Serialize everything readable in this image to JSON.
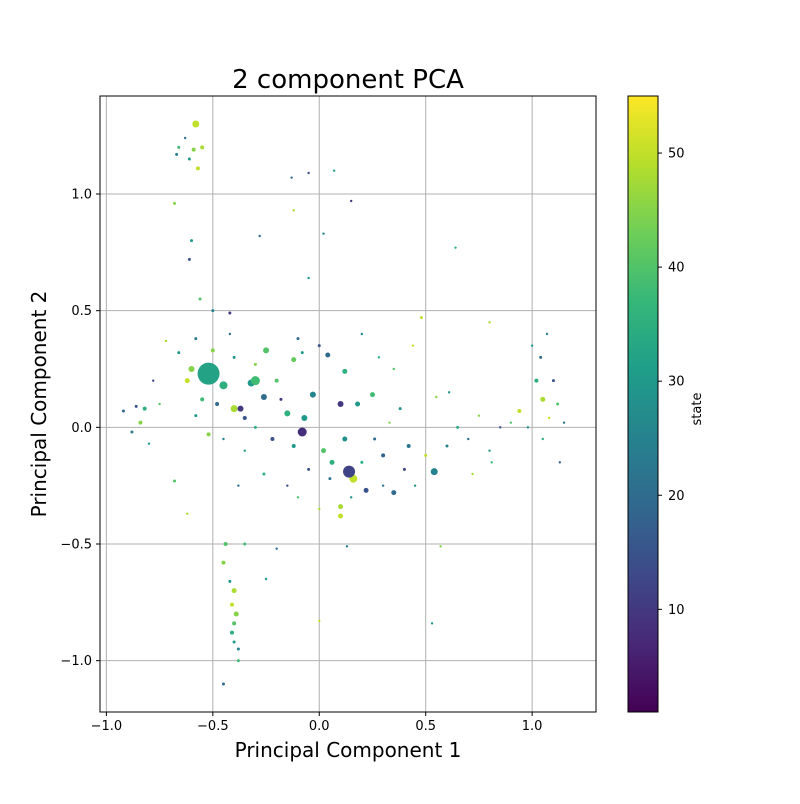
{
  "chart_data": {
    "type": "scatter",
    "title": "2 component PCA",
    "xlabel": "Principal Component 1",
    "ylabel": "Principal Component 2",
    "xlim": [
      -1.03,
      1.3
    ],
    "ylim": [
      -1.22,
      1.42
    ],
    "xticks": [
      -1.0,
      -0.5,
      0.0,
      0.5,
      1.0
    ],
    "xtick_labels": [
      "−1.0",
      "−0.5",
      "0.0",
      "0.5",
      "1.0"
    ],
    "yticks": [
      -1.0,
      -0.5,
      0.0,
      0.5,
      1.0
    ],
    "ytick_labels": [
      "−1.0",
      "−0.5",
      "0.0",
      "0.5",
      "1.0"
    ],
    "grid": true,
    "colormap": "viridis",
    "colorbar": {
      "label": "state",
      "range": [
        1,
        55
      ],
      "ticks": [
        10,
        20,
        30,
        40,
        50
      ],
      "tick_labels": [
        "10",
        "20",
        "30",
        "40",
        "50"
      ]
    },
    "colors": {
      "viridis": [
        "#440154",
        "#482878",
        "#3e4989",
        "#31688e",
        "#26828e",
        "#1f9e89",
        "#35b779",
        "#6ece58",
        "#b5de2b",
        "#fde725"
      ]
    },
    "points": [
      {
        "x": -0.52,
        "y": 0.23,
        "state": 32,
        "size": 11
      },
      {
        "x": -0.58,
        "y": 1.3,
        "state": 50,
        "size": 3.5
      },
      {
        "x": -0.59,
        "y": 1.19,
        "state": 45,
        "size": 2
      },
      {
        "x": -0.55,
        "y": 1.2,
        "state": 48,
        "size": 2
      },
      {
        "x": -0.61,
        "y": 1.15,
        "state": 30,
        "size": 1.5
      },
      {
        "x": -0.66,
        "y": 1.2,
        "state": 38,
        "size": 1.5
      },
      {
        "x": -0.67,
        "y": 1.17,
        "state": 25,
        "size": 1.5
      },
      {
        "x": -0.57,
        "y": 1.11,
        "state": 50,
        "size": 2
      },
      {
        "x": -0.63,
        "y": 1.24,
        "state": 20,
        "size": 1.2
      },
      {
        "x": -0.68,
        "y": 0.96,
        "state": 45,
        "size": 1.5
      },
      {
        "x": -0.6,
        "y": 0.8,
        "state": 30,
        "size": 1.5
      },
      {
        "x": -0.61,
        "y": 0.72,
        "state": 15,
        "size": 1.5
      },
      {
        "x": -0.56,
        "y": 0.55,
        "state": 40,
        "size": 1.5
      },
      {
        "x": -0.5,
        "y": 0.5,
        "state": 25,
        "size": 1.5
      },
      {
        "x": -0.42,
        "y": 0.49,
        "state": 10,
        "size": 1.5
      },
      {
        "x": -0.13,
        "y": 1.07,
        "state": 20,
        "size": 1.2
      },
      {
        "x": -0.05,
        "y": 1.09,
        "state": 15,
        "size": 1.2
      },
      {
        "x": 0.07,
        "y": 1.1,
        "state": 30,
        "size": 1.2
      },
      {
        "x": -0.12,
        "y": 0.93,
        "state": 48,
        "size": 1.2
      },
      {
        "x": 0.15,
        "y": 0.97,
        "state": 10,
        "size": 1.2
      },
      {
        "x": -0.28,
        "y": 0.82,
        "state": 20,
        "size": 1.2
      },
      {
        "x": 0.02,
        "y": 0.83,
        "state": 25,
        "size": 1.2
      },
      {
        "x": -0.05,
        "y": 0.64,
        "state": 30,
        "size": 1.2
      },
      {
        "x": 0.48,
        "y": 0.47,
        "state": 50,
        "size": 1.5
      },
      {
        "x": 0.64,
        "y": 0.77,
        "state": 35,
        "size": 1.2
      },
      {
        "x": 0.8,
        "y": 0.45,
        "state": 48,
        "size": 1.2
      },
      {
        "x": -0.6,
        "y": 0.25,
        "state": 45,
        "size": 3
      },
      {
        "x": -0.62,
        "y": 0.2,
        "state": 50,
        "size": 2.5
      },
      {
        "x": -0.45,
        "y": 0.18,
        "state": 35,
        "size": 4
      },
      {
        "x": -0.3,
        "y": 0.2,
        "state": 38,
        "size": 4.5
      },
      {
        "x": -0.32,
        "y": 0.19,
        "state": 30,
        "size": 3.5
      },
      {
        "x": -0.4,
        "y": 0.08,
        "state": 48,
        "size": 3.5
      },
      {
        "x": -0.37,
        "y": 0.08,
        "state": 10,
        "size": 3
      },
      {
        "x": -0.26,
        "y": 0.13,
        "state": 20,
        "size": 3
      },
      {
        "x": -0.08,
        "y": -0.02,
        "state": 8,
        "size": 4.5
      },
      {
        "x": -0.07,
        "y": 0.04,
        "state": 30,
        "size": 3
      },
      {
        "x": -0.15,
        "y": 0.06,
        "state": 35,
        "size": 3
      },
      {
        "x": -0.03,
        "y": 0.14,
        "state": 25,
        "size": 3
      },
      {
        "x": 0.04,
        "y": 0.31,
        "state": 20,
        "size": 2.5
      },
      {
        "x": 0.14,
        "y": -0.19,
        "state": 12,
        "size": 6
      },
      {
        "x": 0.16,
        "y": -0.22,
        "state": 50,
        "size": 4
      },
      {
        "x": 0.1,
        "y": -0.34,
        "state": 48,
        "size": 2.5
      },
      {
        "x": 0.1,
        "y": -0.38,
        "state": 50,
        "size": 2.5
      },
      {
        "x": 0.1,
        "y": 0.1,
        "state": 10,
        "size": 3
      },
      {
        "x": 0.12,
        "y": 0.24,
        "state": 35,
        "size": 2.5
      },
      {
        "x": 0.18,
        "y": 0.1,
        "state": 30,
        "size": 2.5
      },
      {
        "x": 0.25,
        "y": 0.14,
        "state": 38,
        "size": 2.5
      },
      {
        "x": 0.54,
        "y": -0.19,
        "state": 25,
        "size": 3.5
      },
      {
        "x": 0.35,
        "y": -0.28,
        "state": 20,
        "size": 2.5
      },
      {
        "x": 0.22,
        "y": -0.27,
        "state": 15,
        "size": 2.5
      },
      {
        "x": 0.02,
        "y": -0.1,
        "state": 40,
        "size": 2.5
      },
      {
        "x": 0.06,
        "y": -0.15,
        "state": 35,
        "size": 2.5
      },
      {
        "x": -0.25,
        "y": 0.33,
        "state": 40,
        "size": 3
      },
      {
        "x": -0.12,
        "y": 0.29,
        "state": 42,
        "size": 2.5
      },
      {
        "x": 0.12,
        "y": -0.05,
        "state": 28,
        "size": 2.5
      },
      {
        "x": 0.3,
        "y": -0.12,
        "state": 18,
        "size": 2
      },
      {
        "x": 0.42,
        "y": -0.08,
        "state": 22,
        "size": 2
      },
      {
        "x": -0.22,
        "y": -0.05,
        "state": 15,
        "size": 2
      },
      {
        "x": -0.52,
        "y": -0.03,
        "state": 45,
        "size": 2
      },
      {
        "x": -0.45,
        "y": -0.58,
        "state": 45,
        "size": 2
      },
      {
        "x": -0.44,
        "y": -0.5,
        "state": 40,
        "size": 2
      },
      {
        "x": -0.35,
        "y": -0.5,
        "state": 38,
        "size": 1.5
      },
      {
        "x": -0.42,
        "y": -0.66,
        "state": 30,
        "size": 1.5
      },
      {
        "x": -0.4,
        "y": -0.7,
        "state": 48,
        "size": 2.5
      },
      {
        "x": -0.41,
        "y": -0.76,
        "state": 50,
        "size": 2
      },
      {
        "x": -0.39,
        "y": -0.8,
        "state": 45,
        "size": 2.5
      },
      {
        "x": -0.4,
        "y": -0.84,
        "state": 40,
        "size": 2
      },
      {
        "x": -0.41,
        "y": -0.88,
        "state": 35,
        "size": 2
      },
      {
        "x": -0.4,
        "y": -0.92,
        "state": 30,
        "size": 1.5
      },
      {
        "x": -0.38,
        "y": -0.95,
        "state": 25,
        "size": 1.5
      },
      {
        "x": -0.38,
        "y": -1.0,
        "state": 38,
        "size": 1.5
      },
      {
        "x": -0.45,
        "y": -1.1,
        "state": 20,
        "size": 1.5
      },
      {
        "x": -0.25,
        "y": -0.65,
        "state": 30,
        "size": 1.2
      },
      {
        "x": -0.2,
        "y": -0.52,
        "state": 20,
        "size": 1.2
      },
      {
        "x": 0.13,
        "y": -0.51,
        "state": 25,
        "size": 1.2
      },
      {
        "x": 0.57,
        "y": -0.51,
        "state": 45,
        "size": 1.2
      },
      {
        "x": 0.0,
        "y": -0.83,
        "state": 50,
        "size": 1.2
      },
      {
        "x": 0.53,
        "y": -0.84,
        "state": 30,
        "size": 1.2
      },
      {
        "x": -0.68,
        "y": -0.23,
        "state": 40,
        "size": 1.5
      },
      {
        "x": -0.62,
        "y": -0.37,
        "state": 48,
        "size": 1.2
      },
      {
        "x": -0.84,
        "y": 0.02,
        "state": 45,
        "size": 2
      },
      {
        "x": -0.82,
        "y": 0.08,
        "state": 35,
        "size": 2
      },
      {
        "x": -0.86,
        "y": 0.09,
        "state": 15,
        "size": 1.5
      },
      {
        "x": -0.92,
        "y": 0.07,
        "state": 20,
        "size": 1.5
      },
      {
        "x": -0.88,
        "y": -0.02,
        "state": 25,
        "size": 1.5
      },
      {
        "x": -0.8,
        "y": -0.07,
        "state": 30,
        "size": 1.2
      },
      {
        "x": -0.75,
        "y": 0.1,
        "state": 40,
        "size": 1.2
      },
      {
        "x": -0.78,
        "y": 0.2,
        "state": 12,
        "size": 1.2
      },
      {
        "x": -0.72,
        "y": 0.37,
        "state": 48,
        "size": 1.2
      },
      {
        "x": -0.66,
        "y": 0.32,
        "state": 30,
        "size": 1.5
      },
      {
        "x": -0.58,
        "y": 0.38,
        "state": 25,
        "size": 1.5
      },
      {
        "x": -0.5,
        "y": 0.33,
        "state": 45,
        "size": 2
      },
      {
        "x": -0.48,
        "y": 0.1,
        "state": 20,
        "size": 2
      },
      {
        "x": -0.55,
        "y": 0.12,
        "state": 38,
        "size": 2
      },
      {
        "x": -0.58,
        "y": 0.05,
        "state": 30,
        "size": 1.5
      },
      {
        "x": -0.35,
        "y": 0.04,
        "state": 15,
        "size": 2
      },
      {
        "x": -0.3,
        "y": 0.0,
        "state": 35,
        "size": 1.5
      },
      {
        "x": -0.2,
        "y": 0.2,
        "state": 40,
        "size": 2
      },
      {
        "x": -0.18,
        "y": 0.12,
        "state": 10,
        "size": 1.5
      },
      {
        "x": -0.12,
        "y": -0.08,
        "state": 30,
        "size": 2
      },
      {
        "x": -0.05,
        "y": -0.18,
        "state": 15,
        "size": 1.5
      },
      {
        "x": 0.05,
        "y": -0.22,
        "state": 22,
        "size": 1.5
      },
      {
        "x": 0.2,
        "y": -0.15,
        "state": 35,
        "size": 1.5
      },
      {
        "x": 0.26,
        "y": -0.05,
        "state": 20,
        "size": 1.5
      },
      {
        "x": 0.33,
        "y": 0.02,
        "state": 45,
        "size": 1.2
      },
      {
        "x": 0.38,
        "y": 0.08,
        "state": 28,
        "size": 1.5
      },
      {
        "x": 0.4,
        "y": -0.18,
        "state": 12,
        "size": 1.5
      },
      {
        "x": 0.45,
        "y": -0.25,
        "state": 30,
        "size": 1.2
      },
      {
        "x": 0.5,
        "y": -0.12,
        "state": 50,
        "size": 1.5
      },
      {
        "x": 0.6,
        "y": -0.08,
        "state": 25,
        "size": 1.5
      },
      {
        "x": 0.65,
        "y": 0.0,
        "state": 35,
        "size": 1.5
      },
      {
        "x": 0.7,
        "y": -0.05,
        "state": 20,
        "size": 1.2
      },
      {
        "x": 0.75,
        "y": 0.05,
        "state": 45,
        "size": 1.2
      },
      {
        "x": 0.8,
        "y": -0.1,
        "state": 30,
        "size": 1.2
      },
      {
        "x": 0.85,
        "y": 0.0,
        "state": 15,
        "size": 1.2
      },
      {
        "x": 0.9,
        "y": 0.02,
        "state": 40,
        "size": 1.2
      },
      {
        "x": 0.94,
        "y": 0.07,
        "state": 50,
        "size": 2
      },
      {
        "x": 0.98,
        "y": 0.0,
        "state": 28,
        "size": 1.2
      },
      {
        "x": 1.02,
        "y": 0.2,
        "state": 35,
        "size": 2
      },
      {
        "x": 1.05,
        "y": 0.12,
        "state": 48,
        "size": 2.5
      },
      {
        "x": 1.04,
        "y": 0.3,
        "state": 20,
        "size": 1.5
      },
      {
        "x": 1.07,
        "y": 0.4,
        "state": 25,
        "size": 1.2
      },
      {
        "x": 1.0,
        "y": 0.35,
        "state": 30,
        "size": 1.2
      },
      {
        "x": 1.1,
        "y": 0.2,
        "state": 15,
        "size": 1.5
      },
      {
        "x": 1.12,
        "y": 0.1,
        "state": 40,
        "size": 1.5
      },
      {
        "x": 1.15,
        "y": 0.02,
        "state": 22,
        "size": 1.2
      },
      {
        "x": 1.13,
        "y": -0.15,
        "state": 18,
        "size": 1.2
      },
      {
        "x": 1.08,
        "y": 0.04,
        "state": 50,
        "size": 1.2
      },
      {
        "x": 1.05,
        "y": -0.05,
        "state": 35,
        "size": 1.2
      },
      {
        "x": 0.72,
        "y": -0.2,
        "state": 48,
        "size": 1.2
      },
      {
        "x": 0.81,
        "y": -0.15,
        "state": 38,
        "size": 1.2
      },
      {
        "x": 0.61,
        "y": 0.15,
        "state": 30,
        "size": 1.2
      },
      {
        "x": 0.55,
        "y": 0.13,
        "state": 45,
        "size": 1.2
      },
      {
        "x": -0.1,
        "y": 0.38,
        "state": 20,
        "size": 1.5
      },
      {
        "x": -0.08,
        "y": 0.32,
        "state": 30,
        "size": 1.5
      },
      {
        "x": 0.0,
        "y": 0.35,
        "state": 15,
        "size": 1.5
      },
      {
        "x": 0.2,
        "y": 0.4,
        "state": 25,
        "size": 1.2
      },
      {
        "x": 0.28,
        "y": 0.3,
        "state": 35,
        "size": 1.2
      },
      {
        "x": 0.35,
        "y": 0.25,
        "state": 40,
        "size": 1.2
      },
      {
        "x": 0.44,
        "y": 0.35,
        "state": 50,
        "size": 1.2
      },
      {
        "x": -0.3,
        "y": 0.27,
        "state": 45,
        "size": 1.5
      },
      {
        "x": -0.4,
        "y": 0.3,
        "state": 30,
        "size": 1.5
      },
      {
        "x": -0.42,
        "y": 0.4,
        "state": 20,
        "size": 1.2
      },
      {
        "x": -0.35,
        "y": -0.1,
        "state": 30,
        "size": 1.2
      },
      {
        "x": -0.45,
        "y": -0.05,
        "state": 25,
        "size": 1.2
      },
      {
        "x": -0.38,
        "y": -0.25,
        "state": 20,
        "size": 1.2
      },
      {
        "x": -0.26,
        "y": -0.2,
        "state": 35,
        "size": 1.5
      },
      {
        "x": -0.15,
        "y": -0.25,
        "state": 15,
        "size": 1.2
      },
      {
        "x": -0.1,
        "y": -0.3,
        "state": 40,
        "size": 1.2
      },
      {
        "x": 0.0,
        "y": -0.35,
        "state": 48,
        "size": 1.2
      },
      {
        "x": 0.15,
        "y": -0.3,
        "state": 28,
        "size": 1.2
      },
      {
        "x": 0.3,
        "y": -0.25,
        "state": 22,
        "size": 1.2
      }
    ]
  }
}
